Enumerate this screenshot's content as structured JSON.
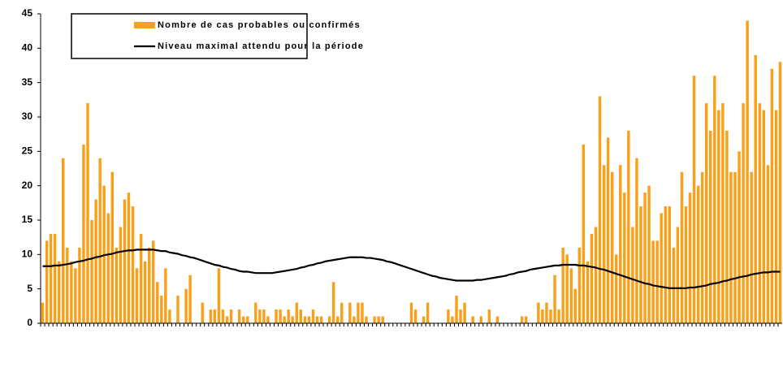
{
  "chart_data": {
    "type": "bar",
    "legend": "upper left",
    "ylim": [
      0,
      45
    ],
    "yticks": [
      0,
      5,
      10,
      15,
      20,
      25,
      30,
      35,
      40,
      45
    ],
    "categories": [
      null,
      null,
      null,
      null,
      null,
      null,
      null,
      null,
      null,
      null,
      null,
      null,
      null,
      null,
      null,
      null,
      null,
      null,
      null,
      null,
      null,
      null,
      null,
      null,
      null,
      null,
      null,
      null,
      null,
      null,
      null,
      null,
      null,
      null,
      null,
      null,
      null,
      null,
      null,
      null,
      null,
      null,
      null,
      null,
      null,
      null,
      null,
      null,
      null,
      null,
      null,
      null,
      null,
      null,
      null,
      null,
      null,
      null,
      null,
      null,
      null,
      null,
      null,
      null,
      null,
      null,
      null,
      null,
      null,
      null,
      null,
      null,
      null,
      null,
      null,
      null,
      null,
      null,
      null,
      null,
      null,
      null,
      null,
      null,
      null,
      null,
      null,
      null,
      null,
      null,
      null,
      null,
      null,
      null,
      null,
      null,
      null,
      null,
      null,
      null,
      null,
      null,
      null,
      null,
      null,
      null,
      null,
      null,
      null,
      null,
      null,
      null,
      null,
      null,
      null,
      null,
      null,
      null,
      null,
      null,
      null,
      null,
      null,
      null,
      null,
      null,
      null,
      null,
      null,
      null,
      null,
      null,
      null,
      null,
      null,
      null,
      null,
      null,
      null,
      null,
      null,
      null,
      null,
      null,
      null,
      null,
      null,
      null,
      null,
      null,
      null,
      null,
      null,
      null,
      null,
      null,
      null,
      null,
      null,
      null,
      null,
      null,
      null,
      null,
      null,
      null,
      null,
      null,
      null,
      null,
      null,
      null,
      null,
      null,
      null,
      null,
      null,
      null,
      null,
      null,
      null
    ],
    "series": [
      {
        "name": "Nombre de cas probables ou confirmés",
        "type": "bar",
        "color": "#f9a01b",
        "values": [
          3,
          12,
          13,
          13,
          9,
          24,
          11,
          9,
          8,
          11,
          26,
          32,
          15,
          18,
          24,
          20,
          16,
          22,
          11,
          14,
          18,
          19,
          17,
          8,
          13,
          9,
          11,
          12,
          6,
          4,
          8,
          2,
          0,
          4,
          0,
          5,
          7,
          0,
          0,
          3,
          0,
          2,
          2,
          8,
          2,
          1,
          2,
          0,
          2,
          1,
          1,
          0,
          3,
          2,
          2,
          1,
          0,
          2,
          2,
          1,
          2,
          1,
          3,
          2,
          1,
          1,
          2,
          1,
          1,
          0,
          1,
          6,
          1,
          3,
          0,
          3,
          1,
          3,
          3,
          1,
          0,
          1,
          1,
          1,
          0,
          0,
          0,
          0,
          0,
          0,
          3,
          2,
          0,
          1,
          3,
          0,
          0,
          0,
          0,
          2,
          1,
          4,
          2,
          3,
          0,
          1,
          0,
          1,
          0,
          2,
          0,
          1,
          0,
          0,
          0,
          0,
          0,
          1,
          1,
          0,
          0,
          3,
          2,
          3,
          2,
          7,
          2,
          11,
          10,
          8,
          5,
          11,
          26,
          9,
          13,
          14,
          33,
          23,
          27,
          22,
          10,
          23,
          19,
          28,
          14,
          24,
          17,
          19,
          20,
          12,
          12,
          16,
          17,
          17,
          11,
          14,
          22,
          17,
          19,
          36,
          20,
          22,
          32,
          28,
          36,
          31,
          32,
          28,
          22,
          22,
          25,
          32,
          44,
          22,
          39,
          32,
          31,
          23,
          37,
          31,
          38
        ]
      },
      {
        "name": "Niveau maximal attendu pour la période",
        "type": "line",
        "color": "#000000",
        "values": [
          8.3,
          8.3,
          8.3,
          8.4,
          8.4,
          8.5,
          8.6,
          8.7,
          8.9,
          9.0,
          9.1,
          9.3,
          9.4,
          9.6,
          9.7,
          9.9,
          10.0,
          10.1,
          10.3,
          10.4,
          10.5,
          10.6,
          10.6,
          10.7,
          10.7,
          10.7,
          10.7,
          10.7,
          10.6,
          10.5,
          10.5,
          10.3,
          10.2,
          10.1,
          9.9,
          9.8,
          9.6,
          9.5,
          9.3,
          9.1,
          8.9,
          8.7,
          8.5,
          8.4,
          8.2,
          8.1,
          7.9,
          7.8,
          7.6,
          7.5,
          7.5,
          7.4,
          7.3,
          7.3,
          7.3,
          7.3,
          7.3,
          7.4,
          7.5,
          7.6,
          7.7,
          7.8,
          7.9,
          8.1,
          8.2,
          8.4,
          8.5,
          8.7,
          8.8,
          9.0,
          9.1,
          9.2,
          9.3,
          9.4,
          9.5,
          9.6,
          9.6,
          9.6,
          9.6,
          9.5,
          9.5,
          9.4,
          9.3,
          9.2,
          9.0,
          8.9,
          8.7,
          8.5,
          8.3,
          8.1,
          7.9,
          7.7,
          7.5,
          7.3,
          7.1,
          6.9,
          6.8,
          6.6,
          6.5,
          6.4,
          6.3,
          6.2,
          6.2,
          6.2,
          6.2,
          6.2,
          6.3,
          6.3,
          6.4,
          6.5,
          6.6,
          6.7,
          6.8,
          6.9,
          7.1,
          7.2,
          7.4,
          7.5,
          7.6,
          7.8,
          7.9,
          8.0,
          8.1,
          8.2,
          8.3,
          8.4,
          8.4,
          8.5,
          8.5,
          8.5,
          8.5,
          8.4,
          8.4,
          8.3,
          8.2,
          8.1,
          7.9,
          7.8,
          7.6,
          7.4,
          7.2,
          7.0,
          6.8,
          6.6,
          6.4,
          6.2,
          6.0,
          5.8,
          5.7,
          5.5,
          5.4,
          5.3,
          5.2,
          5.1,
          5.1,
          5.1,
          5.1,
          5.1,
          5.2,
          5.2,
          5.3,
          5.4,
          5.5,
          5.7,
          5.8,
          5.9,
          6.1,
          6.2,
          6.4,
          6.5,
          6.7,
          6.8,
          6.9,
          7.1,
          7.2,
          7.3,
          7.4,
          7.4,
          7.5,
          7.5,
          7.5
        ]
      }
    ]
  }
}
